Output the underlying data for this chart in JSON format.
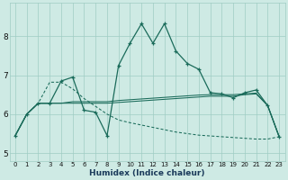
{
  "xlabel": "Humidex (Indice chaleur)",
  "xlim": [
    -0.5,
    23.5
  ],
  "ylim": [
    4.8,
    8.85
  ],
  "yticks": [
    5,
    6,
    7,
    8
  ],
  "xticks": [
    0,
    1,
    2,
    3,
    4,
    5,
    6,
    7,
    8,
    9,
    10,
    11,
    12,
    13,
    14,
    15,
    16,
    17,
    18,
    19,
    20,
    21,
    22,
    23
  ],
  "bg_color": "#ceeae4",
  "grid_color": "#a0ccc4",
  "line_color": "#1a6b5a",
  "series_main": [
    5.45,
    6.0,
    6.28,
    6.28,
    6.85,
    6.95,
    6.1,
    6.05,
    5.45,
    7.25,
    7.82,
    8.32,
    7.82,
    8.32,
    7.62,
    7.3,
    7.15,
    6.55,
    6.52,
    6.42,
    6.55,
    6.62,
    6.22,
    5.42
  ],
  "series_dashed": [
    5.45,
    6.0,
    6.28,
    6.82,
    6.82,
    6.65,
    6.4,
    6.2,
    6.0,
    5.85,
    5.78,
    5.72,
    5.66,
    5.6,
    5.54,
    5.5,
    5.46,
    5.44,
    5.42,
    5.4,
    5.38,
    5.36,
    5.36,
    5.42
  ],
  "series_flat1": [
    5.45,
    6.0,
    6.28,
    6.28,
    6.28,
    6.28,
    6.28,
    6.28,
    6.28,
    6.3,
    6.32,
    6.34,
    6.36,
    6.38,
    6.4,
    6.42,
    6.44,
    6.46,
    6.46,
    6.46,
    6.5,
    6.52,
    6.22,
    5.42
  ],
  "series_flat2": [
    5.45,
    6.0,
    6.28,
    6.28,
    6.28,
    6.32,
    6.32,
    6.32,
    6.32,
    6.35,
    6.37,
    6.39,
    6.41,
    6.43,
    6.45,
    6.47,
    6.49,
    6.5,
    6.5,
    6.5,
    6.52,
    6.54,
    6.22,
    5.42
  ]
}
